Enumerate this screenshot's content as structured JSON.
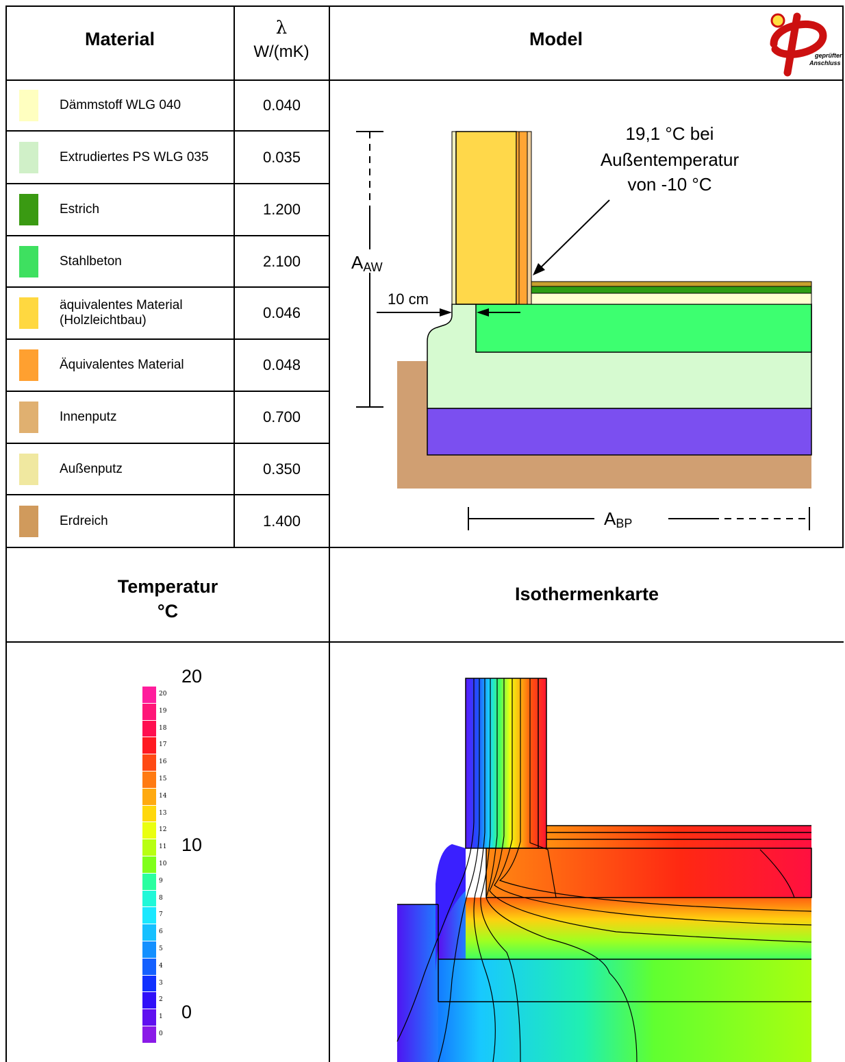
{
  "headers": {
    "material": "Material",
    "lambda_symbol": "λ",
    "lambda_unit": "W/(mK)",
    "model": "Model",
    "temperature_line1": "Temperatur",
    "temperature_line2": "°C",
    "isotherm": "Isothermenkarte"
  },
  "logo": {
    "text_line1": "geprüfter",
    "text_line2": "Anschluss"
  },
  "materials": [
    {
      "name": "Dämmstoff WLG 040",
      "lambda": "0.040",
      "color": "#ffffc0"
    },
    {
      "name": "Extrudiertes PS WLG 035",
      "lambda": "0.035",
      "color": "#d0f0c8"
    },
    {
      "name": "Estrich",
      "lambda": "1.200",
      "color": "#3a9a12"
    },
    {
      "name": "Stahlbeton",
      "lambda": "2.100",
      "color": "#3ee060"
    },
    {
      "name": "äquivalentes Material",
      "name2": "(Holzleichtbau)",
      "lambda": "0.046",
      "color": "#ffd840"
    },
    {
      "name": "Äquivalentes Material",
      "lambda": "0.048",
      "color": "#ffa030"
    },
    {
      "name": "Innenputz",
      "lambda": "0.700",
      "color": "#e0b070"
    },
    {
      "name": "Außenputz",
      "lambda": "0.350",
      "color": "#f0e8a0"
    },
    {
      "name": "Erdreich",
      "lambda": "1.400",
      "color": "#d09a5c"
    }
  ],
  "model": {
    "annotation_line1": "19,1 °C bei",
    "annotation_line2": "Außentemperatur",
    "annotation_line3": "von -10 °C",
    "dim_aw_main": "A",
    "dim_aw_sub": "AW",
    "dim_10cm": "10 cm",
    "dim_bp_main": "A",
    "dim_bp_sub": "BP",
    "colors": {
      "soil": "#d09f72",
      "ground_slab": "#7b4ff0",
      "xps": "#d6fad0",
      "concrete": "#3dff70",
      "screed": "#2d9d14",
      "screed_top": "#c6a02e",
      "insulation_floor": "#ffffd0",
      "wall_equiv": "#ffd84a",
      "wall_equiv_orange": "#ffa534"
    }
  },
  "scale": {
    "labels": [
      "20",
      "19",
      "18",
      "17",
      "16",
      "15",
      "14",
      "13",
      "12",
      "11",
      "10",
      "9",
      "8",
      "7",
      "6",
      "5",
      "4",
      "3",
      "2",
      "1",
      "0"
    ],
    "major_top": "20",
    "major_mid": "10",
    "major_bottom": "0",
    "colors": [
      "#ff1d9c",
      "#ff1678",
      "#ff1050",
      "#ff1a22",
      "#ff4a14",
      "#ff7a12",
      "#ffaa10",
      "#ffd80c",
      "#eaff10",
      "#b8ff12",
      "#80ff1a",
      "#2affa0",
      "#20f8d8",
      "#1ae8ff",
      "#16c0ff",
      "#1490ff",
      "#1460ff",
      "#1030ff",
      "#3010f8",
      "#6010f0",
      "#8a1ae8"
    ]
  }
}
